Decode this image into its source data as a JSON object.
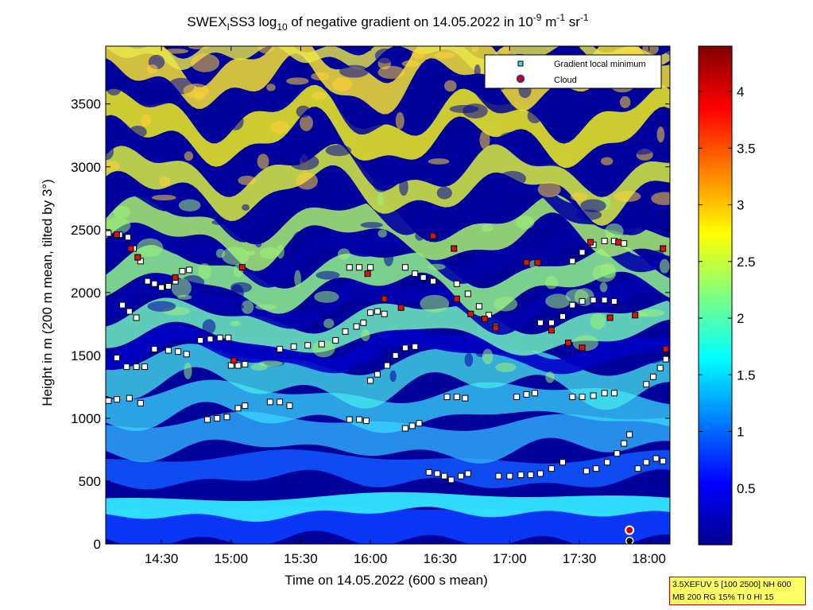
{
  "title": {
    "prefix": "SWEX",
    "prefix_sub": "I",
    "mid": "SS3 log",
    "log_sub": "10",
    "text": " of negative gradient on 14.05.2022 in 10",
    "exp1": "-9",
    "unit1": " m",
    "exp2": "-1",
    "unit2": " sr",
    "exp3": "-1"
  },
  "info_box": {
    "line1": "3.5XEFUV 5 [100 2500] NH 600",
    "line2": "MB 200 RG 15% TI 0 HI 15"
  },
  "colors": {
    "cloud_fill": "#cc0000",
    "marker_edge": "#000000",
    "legend_square_fill": "#33dddd",
    "info_bg": "#ffff66",
    "info_border": "#cc0000"
  },
  "chart_data": {
    "type": "heatmap",
    "colormap": "jet",
    "xlabel": "Time on 14.05.2022 (600 s mean)",
    "ylabel": "Height in m (200 m mean, tilted by 3°)",
    "x_unit": "hours",
    "xlim": [
      14.1,
      18.15
    ],
    "ylim": [
      0,
      3960
    ],
    "x_ticks": [
      {
        "value": 14.5,
        "label": "14:30"
      },
      {
        "value": 15.0,
        "label": "15:00"
      },
      {
        "value": 15.5,
        "label": "15:30"
      },
      {
        "value": 16.0,
        "label": "16:00"
      },
      {
        "value": 16.5,
        "label": "16:30"
      },
      {
        "value": 17.0,
        "label": "17:00"
      },
      {
        "value": 17.5,
        "label": "17:30"
      },
      {
        "value": 18.0,
        "label": "18:00"
      }
    ],
    "y_ticks": [
      {
        "value": 0,
        "label": "0"
      },
      {
        "value": 500,
        "label": "500"
      },
      {
        "value": 1000,
        "label": "1000"
      },
      {
        "value": 1500,
        "label": "1500"
      },
      {
        "value": 2000,
        "label": "2000"
      },
      {
        "value": 2500,
        "label": "2500"
      },
      {
        "value": 3000,
        "label": "3000"
      },
      {
        "value": 3500,
        "label": "3500"
      }
    ],
    "colorbar": {
      "clim": [
        0,
        4.4
      ],
      "ticks": [
        {
          "value": 0.5,
          "label": "0.5"
        },
        {
          "value": 1,
          "label": "1"
        },
        {
          "value": 1.5,
          "label": "1.5"
        },
        {
          "value": 2,
          "label": "2"
        },
        {
          "value": 2.5,
          "label": "2.5"
        },
        {
          "value": 3,
          "label": "3"
        },
        {
          "value": 3.5,
          "label": "3.5"
        },
        {
          "value": 4,
          "label": "4"
        }
      ]
    },
    "legend": {
      "location": "top-right",
      "entries": [
        {
          "label": "Gradient local minimum",
          "marker": "square"
        },
        {
          "label": "Cloud",
          "marker": "circle"
        }
      ]
    },
    "gradient_minima_tracks": [
      {
        "color": "black",
        "points": [
          [
            14.12,
            2470
          ],
          [
            14.2,
            2460
          ],
          [
            14.26,
            2440
          ],
          [
            14.3,
            2350
          ],
          [
            14.35,
            2250
          ]
        ]
      },
      {
        "color": "black",
        "points": [
          [
            14.4,
            2090
          ],
          [
            14.45,
            2070
          ],
          [
            14.5,
            2040
          ],
          [
            14.55,
            2050
          ],
          [
            14.6,
            2090
          ],
          [
            14.65,
            2170
          ],
          [
            14.7,
            2180
          ]
        ]
      },
      {
        "color": "black",
        "points": [
          [
            14.22,
            1900
          ],
          [
            14.27,
            1850
          ],
          [
            14.32,
            1800
          ]
        ]
      },
      {
        "color": "black",
        "points": [
          [
            14.18,
            1480
          ],
          [
            14.25,
            1410
          ],
          [
            14.32,
            1410
          ],
          [
            14.38,
            1410
          ]
        ]
      },
      {
        "color": "black",
        "points": [
          [
            14.45,
            1550
          ],
          [
            14.55,
            1540
          ],
          [
            14.62,
            1530
          ],
          [
            14.68,
            1510
          ]
        ]
      },
      {
        "color": "black",
        "points": [
          [
            14.12,
            1140
          ],
          [
            14.18,
            1150
          ],
          [
            14.27,
            1160
          ],
          [
            14.35,
            1120
          ]
        ]
      },
      {
        "color": "black",
        "points": [
          [
            14.78,
            1620
          ],
          [
            14.85,
            1630
          ],
          [
            14.92,
            1640
          ],
          [
            14.98,
            1640
          ]
        ]
      },
      {
        "color": "black",
        "points": [
          [
            14.83,
            990
          ],
          [
            14.9,
            1000
          ],
          [
            14.97,
            1010
          ],
          [
            15.05,
            1080
          ],
          [
            15.1,
            1100
          ]
        ]
      },
      {
        "color": "black",
        "points": [
          [
            15.0,
            1420
          ],
          [
            15.05,
            1420
          ],
          [
            15.1,
            1430
          ]
        ]
      },
      {
        "color": "black",
        "points": [
          [
            15.35,
            1550
          ],
          [
            15.45,
            1570
          ],
          [
            15.55,
            1580
          ],
          [
            15.65,
            1590
          ],
          [
            15.75,
            1620
          ],
          [
            15.82,
            1690
          ],
          [
            15.9,
            1730
          ],
          [
            15.95,
            1760
          ]
        ]
      },
      {
        "color": "black",
        "points": [
          [
            15.28,
            1130
          ],
          [
            15.35,
            1130
          ],
          [
            15.42,
            1100
          ]
        ]
      },
      {
        "color": "black",
        "points": [
          [
            15.85,
            2200
          ],
          [
            15.92,
            2200
          ],
          [
            16.0,
            2200
          ]
        ]
      },
      {
        "color": "black",
        "points": [
          [
            15.85,
            990
          ],
          [
            15.92,
            990
          ],
          [
            15.97,
            980
          ]
        ]
      },
      {
        "color": "black",
        "points": [
          [
            16.0,
            1840
          ],
          [
            16.05,
            1850
          ],
          [
            16.1,
            1830
          ]
        ]
      },
      {
        "color": "black",
        "points": [
          [
            16.0,
            1300
          ],
          [
            16.05,
            1350
          ],
          [
            16.12,
            1420
          ],
          [
            16.18,
            1500
          ],
          [
            16.25,
            1560
          ],
          [
            16.32,
            1570
          ]
        ]
      },
      {
        "color": "black",
        "points": [
          [
            16.25,
            2200
          ],
          [
            16.32,
            2150
          ],
          [
            16.38,
            2120
          ],
          [
            16.45,
            2090
          ]
        ]
      },
      {
        "color": "black",
        "points": [
          [
            16.25,
            920
          ],
          [
            16.3,
            940
          ],
          [
            16.35,
            960
          ]
        ]
      },
      {
        "color": "black",
        "points": [
          [
            16.42,
            570
          ],
          [
            16.48,
            560
          ],
          [
            16.53,
            540
          ],
          [
            16.58,
            510
          ],
          [
            16.65,
            540
          ],
          [
            16.7,
            560
          ]
        ]
      },
      {
        "color": "black",
        "points": [
          [
            16.55,
            1170
          ],
          [
            16.62,
            1170
          ],
          [
            16.68,
            1160
          ]
        ]
      },
      {
        "color": "black",
        "points": [
          [
            16.62,
            2070
          ],
          [
            16.7,
            1990
          ],
          [
            16.78,
            1890
          ],
          [
            16.85,
            1820
          ],
          [
            16.9,
            1730
          ]
        ]
      },
      {
        "color": "black",
        "points": [
          [
            16.92,
            540
          ],
          [
            17.0,
            540
          ],
          [
            17.08,
            550
          ],
          [
            17.15,
            550
          ],
          [
            17.22,
            560
          ],
          [
            17.3,
            600
          ],
          [
            17.38,
            650
          ]
        ]
      },
      {
        "color": "black",
        "points": [
          [
            17.05,
            1170
          ],
          [
            17.12,
            1190
          ],
          [
            17.18,
            1200
          ]
        ]
      },
      {
        "color": "black",
        "points": [
          [
            17.22,
            1760
          ],
          [
            17.3,
            1760
          ],
          [
            17.38,
            1810
          ],
          [
            17.45,
            1900
          ],
          [
            17.52,
            1930
          ],
          [
            17.6,
            1940
          ],
          [
            17.68,
            1940
          ],
          [
            17.75,
            1930
          ]
        ]
      },
      {
        "color": "black",
        "points": [
          [
            17.45,
            2250
          ],
          [
            17.52,
            2320
          ],
          [
            17.6,
            2380
          ],
          [
            17.68,
            2410
          ],
          [
            17.75,
            2410
          ],
          [
            17.82,
            2390
          ]
        ]
      },
      {
        "color": "black",
        "points": [
          [
            17.45,
            1170
          ],
          [
            17.52,
            1170
          ],
          [
            17.6,
            1180
          ],
          [
            17.68,
            1200
          ],
          [
            17.75,
            1200
          ]
        ]
      },
      {
        "color": "black",
        "points": [
          [
            17.55,
            580
          ],
          [
            17.62,
            600
          ],
          [
            17.7,
            650
          ],
          [
            17.77,
            720
          ],
          [
            17.82,
            800
          ],
          [
            17.86,
            870
          ]
        ]
      },
      {
        "color": "black",
        "points": [
          [
            17.92,
            600
          ],
          [
            17.98,
            650
          ],
          [
            18.05,
            680
          ],
          [
            18.1,
            660
          ]
        ]
      },
      {
        "color": "black",
        "points": [
          [
            17.98,
            1270
          ],
          [
            18.03,
            1330
          ],
          [
            18.08,
            1400
          ],
          [
            18.12,
            1470
          ]
        ]
      },
      {
        "color": "red",
        "points": [
          [
            14.28,
            2350
          ],
          [
            14.33,
            2280
          ],
          [
            14.18,
            2460
          ],
          [
            14.6,
            2120
          ],
          [
            15.08,
            2200
          ],
          [
            15.02,
            1460
          ],
          [
            15.98,
            2150
          ],
          [
            16.1,
            1950
          ],
          [
            16.22,
            1880
          ],
          [
            16.45,
            2450
          ],
          [
            16.6,
            2350
          ],
          [
            16.62,
            1950
          ],
          [
            16.72,
            1830
          ],
          [
            16.82,
            1790
          ],
          [
            16.9,
            1720
          ],
          [
            17.12,
            2240
          ],
          [
            17.2,
            2240
          ],
          [
            17.3,
            1700
          ],
          [
            17.42,
            1600
          ],
          [
            17.52,
            1560
          ],
          [
            17.58,
            2400
          ],
          [
            17.72,
            1800
          ],
          [
            17.78,
            2400
          ],
          [
            17.9,
            1820
          ],
          [
            18.1,
            2350
          ],
          [
            18.12,
            1550
          ]
        ]
      }
    ],
    "clouds": [
      {
        "x": 17.86,
        "y": 110
      }
    ]
  }
}
